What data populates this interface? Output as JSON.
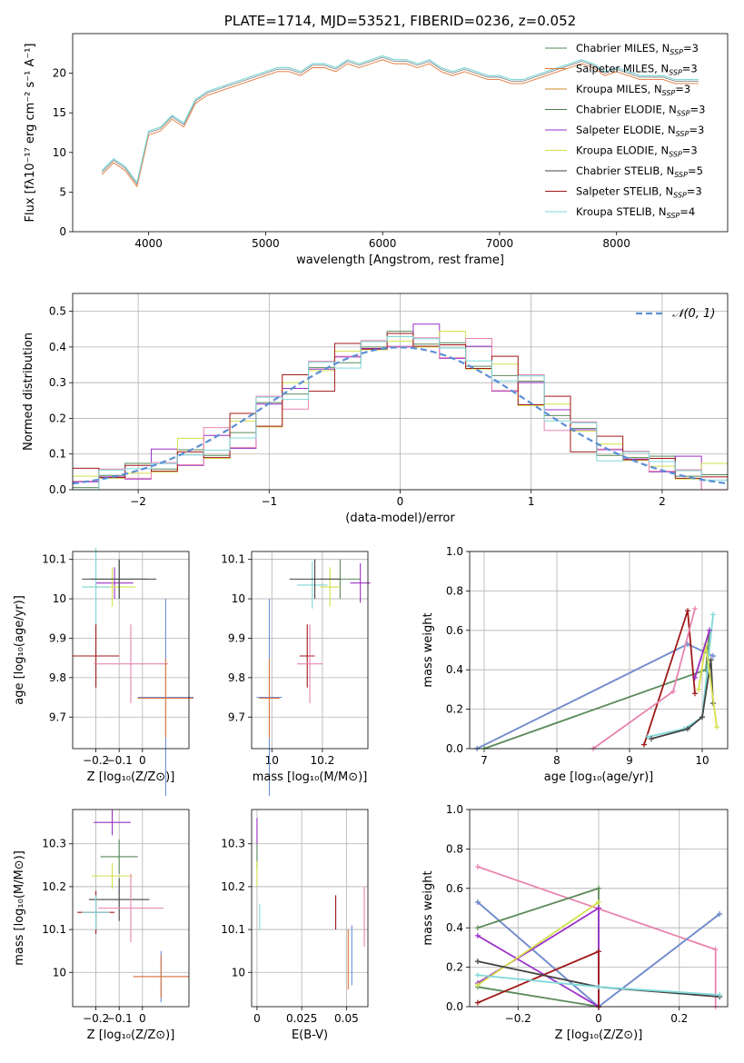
{
  "title": "PLATE=1714, MJD=53521, FIBERID=0236, z=0.052",
  "colors": {
    "Chabrier MILES": "#5a8a5a",
    "Salpeter MILES": "#e0783c",
    "Kroupa MILES": "#d08a2a",
    "Chabrier ELODIE": "#4a7a4a",
    "Salpeter ELODIE": "#9b30c8",
    "Kroupa ELODIE": "#d4e04a",
    "Chabrier STELIB": "#444444",
    "Salpeter STELIB": "#a01818",
    "Kroupa STELIB": "#7fd8d8",
    "data": "#808080",
    "normal": "#5b8fd6",
    "pink": "#e884b0",
    "blue": "#6a8fd8"
  },
  "chart_data": [
    {
      "id": "spectrum",
      "type": "line",
      "title": "PLATE=1714, MJD=53521, FIBERID=0236, z=0.052",
      "xlabel": "wavelength [Angstrom, rest frame]",
      "ylabel": "Flux [fλ10⁻¹⁷ erg cm⁻² s⁻¹ A⁻¹]",
      "xlim": [
        3350,
        8950
      ],
      "ylim": [
        0,
        25
      ],
      "xticks": [
        4000,
        5000,
        6000,
        7000,
        8000
      ],
      "yticks": [
        0,
        5,
        10,
        15,
        20
      ],
      "x": [
        3600,
        3700,
        3800,
        3900,
        4000,
        4100,
        4200,
        4300,
        4400,
        4500,
        4600,
        4700,
        4800,
        4900,
        5000,
        5100,
        5200,
        5300,
        5400,
        5500,
        5600,
        5700,
        5800,
        5900,
        6000,
        6100,
        6200,
        6300,
        6400,
        6500,
        6600,
        6700,
        6800,
        6900,
        7000,
        7100,
        7200,
        7300,
        7400,
        7500,
        7600,
        7700,
        7800,
        7900,
        8000,
        8100,
        8200,
        8300,
        8400,
        8500,
        8600,
        8700
      ],
      "y": [
        7.5,
        9.0,
        8.0,
        6.0,
        12.5,
        13.0,
        14.5,
        13.5,
        16.5,
        17.5,
        18.0,
        18.5,
        19.0,
        19.5,
        20.0,
        20.5,
        20.5,
        20.0,
        21.0,
        21.0,
        20.5,
        21.5,
        21.0,
        21.5,
        22.0,
        21.5,
        21.5,
        21.0,
        21.5,
        20.5,
        20.0,
        20.5,
        20.0,
        19.5,
        19.5,
        19.0,
        19.0,
        19.5,
        20.0,
        20.5,
        21.0,
        21.5,
        21.0,
        20.0,
        20.5,
        20.0,
        19.5,
        19.5,
        19.5,
        19.0,
        19.0,
        19.0
      ],
      "legend_position": "top-right",
      "legend": [
        {
          "label": "Chabrier MILES, N",
          "sub": "SSP",
          "suffix": "=3",
          "key": "Chabrier MILES"
        },
        {
          "label": "Salpeter MILES, N",
          "sub": "SSP",
          "suffix": "=3",
          "key": "Salpeter MILES"
        },
        {
          "label": "Kroupa MILES, N",
          "sub": "SSP",
          "suffix": "=3",
          "key": "Kroupa MILES"
        },
        {
          "label": "Chabrier ELODIE, N",
          "sub": "SSP",
          "suffix": "=3",
          "key": "Chabrier ELODIE"
        },
        {
          "label": "Salpeter ELODIE, N",
          "sub": "SSP",
          "suffix": "=3",
          "key": "Salpeter ELODIE"
        },
        {
          "label": "Kroupa ELODIE, N",
          "sub": "SSP",
          "suffix": "=3",
          "key": "Kroupa ELODIE"
        },
        {
          "label": "Chabrier STELIB, N",
          "sub": "SSP",
          "suffix": "=5",
          "key": "Chabrier STELIB"
        },
        {
          "label": "Salpeter STELIB, N",
          "sub": "SSP",
          "suffix": "=3",
          "key": "Salpeter STELIB"
        },
        {
          "label": "Kroupa STELIB, N",
          "sub": "SSP",
          "suffix": "=4",
          "key": "Kroupa STELIB"
        }
      ]
    },
    {
      "id": "residuals",
      "type": "line",
      "xlabel": "(data-model)/error",
      "ylabel": "Normed distribution",
      "xlim": [
        -2.5,
        2.5
      ],
      "ylim": [
        0,
        0.55
      ],
      "xticks": [
        -2,
        -1,
        0,
        1,
        2
      ],
      "yticks": [
        0.0,
        0.1,
        0.2,
        0.3,
        0.4,
        0.5
      ],
      "legend_label": "𝒩(0, 1)",
      "legend_position": "top-right",
      "bins": [
        -2.5,
        -2.3,
        -2.1,
        -1.9,
        -1.7,
        -1.5,
        -1.3,
        -1.1,
        -0.9,
        -0.7,
        -0.5,
        -0.3,
        -0.1,
        0.1,
        0.3,
        0.5,
        0.7,
        0.9,
        1.1,
        1.3,
        1.5,
        1.7,
        1.9,
        2.1,
        2.3,
        2.5
      ],
      "hist": [
        0.03,
        0.04,
        0.05,
        0.07,
        0.1,
        0.12,
        0.16,
        0.22,
        0.28,
        0.33,
        0.38,
        0.4,
        0.42,
        0.42,
        0.4,
        0.37,
        0.32,
        0.28,
        0.22,
        0.16,
        0.12,
        0.09,
        0.07,
        0.05,
        0.03
      ]
    },
    {
      "id": "age-vs-Z",
      "type": "scatter",
      "xlabel": "Z [log₁₀(Z/Z⊙)]",
      "ylabel": "age  [log₁₀(age/yr)]",
      "xlim": [
        -0.3,
        0.2
      ],
      "ylim": [
        9.62,
        10.12
      ],
      "xticks": [
        -0.2,
        -0.1,
        0.0
      ],
      "yticks": [
        9.7,
        9.8,
        9.9,
        10.0,
        10.1
      ],
      "points": [
        {
          "x": -0.1,
          "y": 10.05,
          "xerr": 0.12,
          "yerr": 0.05,
          "c": "Chabrier MILES"
        },
        {
          "x": -0.12,
          "y": 10.04,
          "xerr": 0.08,
          "yerr": 0.04,
          "c": "Salpeter ELODIE"
        },
        {
          "x": -0.13,
          "y": 10.03,
          "xerr": 0.1,
          "yerr": 0.05,
          "c": "Kroupa ELODIE"
        },
        {
          "x": -0.2,
          "y": 10.03,
          "xerr": 0.06,
          "yerr": 0.1,
          "c": "Kroupa STELIB"
        },
        {
          "x": -0.1,
          "y": 10.05,
          "xerr": 0.16,
          "yerr": 0.05,
          "c": "Chabrier STELIB"
        },
        {
          "x": -0.2,
          "y": 9.855,
          "xerr": 0.1,
          "yerr": 0.08,
          "c": "Salpeter STELIB"
        },
        {
          "x": -0.05,
          "y": 9.835,
          "xerr": 0.16,
          "yerr": 0.1,
          "c": "pink"
        },
        {
          "x": 0.1,
          "y": 9.75,
          "xerr": 0.12,
          "yerr": 0.25,
          "c": "blue"
        },
        {
          "x": 0.1,
          "y": 9.748,
          "xerr": 0.12,
          "yerr": 0.1,
          "c": "Salpeter MILES"
        }
      ]
    },
    {
      "id": "age-vs-mass",
      "type": "scatter",
      "xlabel": "mass [log₁₀(M/M⊙)]",
      "ylabel": "",
      "xlim": [
        9.92,
        10.38
      ],
      "ylim": [
        9.62,
        10.12
      ],
      "xticks": [
        10.0,
        10.2
      ],
      "yticks": [
        9.7,
        9.8,
        9.9,
        10.0,
        10.1
      ],
      "points": [
        {
          "x": 10.27,
          "y": 10.05,
          "xerr": 0.08,
          "yerr": 0.05,
          "c": "Chabrier MILES"
        },
        {
          "x": 10.35,
          "y": 10.04,
          "xerr": 0.04,
          "yerr": 0.05,
          "c": "Salpeter ELODIE"
        },
        {
          "x": 10.23,
          "y": 10.03,
          "xerr": 0.04,
          "yerr": 0.05,
          "c": "Kroupa ELODIE"
        },
        {
          "x": 10.16,
          "y": 10.035,
          "xerr": 0.06,
          "yerr": 0.06,
          "c": "Kroupa STELIB"
        },
        {
          "x": 10.17,
          "y": 10.05,
          "xerr": 0.1,
          "yerr": 0.05,
          "c": "Chabrier STELIB"
        },
        {
          "x": 10.14,
          "y": 9.855,
          "xerr": 0.03,
          "yerr": 0.08,
          "c": "Salpeter STELIB"
        },
        {
          "x": 10.15,
          "y": 9.835,
          "xerr": 0.05,
          "yerr": 0.1,
          "c": "pink"
        },
        {
          "x": 9.99,
          "y": 9.75,
          "xerr": 0.05,
          "yerr": 0.25,
          "c": "blue"
        },
        {
          "x": 9.99,
          "y": 9.748,
          "xerr": 0.04,
          "yerr": 0.1,
          "c": "Salpeter MILES"
        }
      ]
    },
    {
      "id": "massweight-vs-age",
      "type": "line",
      "xlabel": "age  [log₁₀(age/yr)]",
      "ylabel": "mass weight",
      "xlim": [
        6.8,
        10.35
      ],
      "ylim": [
        0,
        1
      ],
      "xticks": [
        7,
        8,
        9,
        10
      ],
      "yticks": [
        0.0,
        0.2,
        0.4,
        0.6,
        0.8,
        1.0
      ],
      "series": [
        {
          "c": "Salpeter MILES",
          "x": [
            6.9,
            9.8,
            10.15
          ],
          "y": [
            0.0,
            0.53,
            0.47
          ]
        },
        {
          "c": "blue",
          "x": [
            6.9,
            9.8,
            10.15
          ],
          "y": [
            0.0,
            0.53,
            0.47
          ]
        },
        {
          "c": "Chabrier MILES",
          "x": [
            7.0,
            10.05,
            10.1
          ],
          "y": [
            0.0,
            0.4,
            0.6
          ]
        },
        {
          "c": "Salpeter STELIB",
          "x": [
            9.2,
            9.8,
            9.9
          ],
          "y": [
            0.02,
            0.7,
            0.28
          ]
        },
        {
          "c": "pink",
          "x": [
            8.5,
            9.6,
            9.9
          ],
          "y": [
            0.0,
            0.29,
            0.71
          ]
        },
        {
          "c": "Kroupa STELIB",
          "x": [
            9.25,
            9.75,
            10.0,
            10.15
          ],
          "y": [
            0.06,
            0.1,
            0.16,
            0.68
          ]
        },
        {
          "c": "Chabrier STELIB",
          "x": [
            9.3,
            9.8,
            10.0,
            10.12,
            10.15
          ],
          "y": [
            0.05,
            0.1,
            0.16,
            0.45,
            0.23
          ]
        },
        {
          "c": "Kroupa ELODIE",
          "x": [
            9.95,
            10.05,
            10.2
          ],
          "y": [
            0.3,
            0.53,
            0.11
          ]
        },
        {
          "c": "Salpeter ELODIE",
          "x": [
            9.9,
            10.1
          ],
          "y": [
            0.36,
            0.6
          ]
        }
      ]
    },
    {
      "id": "mass-vs-Z",
      "type": "scatter",
      "xlabel": "Z [log₁₀(Z/Z⊙)]",
      "ylabel": "mass [log₁₀(M/M⊙)]",
      "xlim": [
        -0.3,
        0.2
      ],
      "ylim": [
        9.92,
        10.38
      ],
      "xticks": [
        -0.2,
        -0.1,
        0.0
      ],
      "yticks": [
        10.0,
        10.1,
        10.2,
        10.3
      ],
      "points": [
        {
          "x": -0.13,
          "y": 10.35,
          "xerr": 0.08,
          "yerr": 0.03,
          "c": "Salpeter ELODIE"
        },
        {
          "x": -0.1,
          "y": 10.27,
          "xerr": 0.08,
          "yerr": 0.04,
          "c": "Chabrier MILES"
        },
        {
          "x": -0.13,
          "y": 10.225,
          "xerr": 0.09,
          "yerr": 0.03,
          "c": "Kroupa ELODIE"
        },
        {
          "x": -0.1,
          "y": 10.17,
          "xerr": 0.13,
          "yerr": 0.05,
          "c": "Chabrier STELIB"
        },
        {
          "x": -0.2,
          "y": 10.14,
          "xerr": 0.08,
          "yerr": 0.05,
          "c": "Salpeter STELIB"
        },
        {
          "x": -0.2,
          "y": 10.14,
          "xerr": 0.06,
          "yerr": 0.04,
          "c": "Kroupa STELIB"
        },
        {
          "x": -0.05,
          "y": 10.15,
          "xerr": 0.14,
          "yerr": 0.08,
          "c": "pink"
        },
        {
          "x": 0.08,
          "y": 9.99,
          "xerr": 0.12,
          "yerr": 0.06,
          "c": "blue"
        },
        {
          "x": 0.08,
          "y": 9.99,
          "xerr": 0.12,
          "yerr": 0.05,
          "c": "Salpeter MILES"
        }
      ]
    },
    {
      "id": "mass-vs-ebv",
      "type": "scatter",
      "xlabel": "E(B-V)",
      "ylabel": "",
      "xlim": [
        -0.003,
        0.062
      ],
      "ylim": [
        9.92,
        10.38
      ],
      "xticks": [
        0.0,
        0.025,
        0.05
      ],
      "yticks": [
        10.0,
        10.1,
        10.2,
        10.3
      ],
      "points": [
        {
          "x": 0.0,
          "y": 10.33,
          "xerr": 0,
          "yerr": 0.03,
          "c": "Salpeter ELODIE"
        },
        {
          "x": 0.0,
          "y": 10.27,
          "xerr": 0,
          "yerr": 0.03,
          "c": "Chabrier MILES"
        },
        {
          "x": 0.0,
          "y": 10.23,
          "xerr": 0,
          "yerr": 0.03,
          "c": "Kroupa ELODIE"
        },
        {
          "x": 0.0015,
          "y": 10.13,
          "xerr": 0,
          "yerr": 0.03,
          "c": "Kroupa STELIB"
        },
        {
          "x": 0.044,
          "y": 10.14,
          "xerr": 0,
          "yerr": 0.04,
          "c": "Salpeter STELIB"
        },
        {
          "x": 0.06,
          "y": 10.13,
          "xerr": 0,
          "yerr": 0.07,
          "c": "pink"
        },
        {
          "x": 0.053,
          "y": 10.04,
          "xerr": 0,
          "yerr": 0.07,
          "c": "blue"
        },
        {
          "x": 0.051,
          "y": 10.03,
          "xerr": 0,
          "yerr": 0.07,
          "c": "Salpeter MILES"
        }
      ]
    },
    {
      "id": "massweight-vs-Z",
      "type": "line",
      "xlabel": "Z [log₁₀(Z/Z⊙)]",
      "ylabel": "mass weight",
      "xlim": [
        -0.32,
        0.32
      ],
      "ylim": [
        0,
        1
      ],
      "xticks": [
        -0.2,
        0.0,
        0.2
      ],
      "yticks": [
        0.0,
        0.2,
        0.4,
        0.6,
        0.8,
        1.0
      ],
      "series": [
        {
          "c": "pink",
          "x": [
            -0.3,
            0.29,
            0.29
          ],
          "y": [
            0.71,
            0.29,
            0.0
          ]
        },
        {
          "c": "Salpeter MILES",
          "x": [
            -0.3,
            0.0,
            0.3
          ],
          "y": [
            0.53,
            0.0,
            0.47
          ]
        },
        {
          "c": "blue",
          "x": [
            -0.3,
            0.0,
            0.3
          ],
          "y": [
            0.53,
            0.0,
            0.47
          ]
        },
        {
          "c": "Chabrier MILES",
          "x": [
            -0.3,
            0.0,
            0.0,
            -0.3
          ],
          "y": [
            0.4,
            0.6,
            0.0,
            0.1
          ]
        },
        {
          "c": "Salpeter ELODIE",
          "x": [
            -0.3,
            0.0,
            0.0,
            -0.3
          ],
          "y": [
            0.12,
            0.5,
            0.0,
            0.36
          ]
        },
        {
          "c": "Kroupa ELODIE",
          "x": [
            -0.3,
            0.0
          ],
          "y": [
            0.11,
            0.53
          ]
        },
        {
          "c": "Salpeter STELIB",
          "x": [
            -0.3,
            0.0,
            0.0
          ],
          "y": [
            0.02,
            0.28,
            0.0
          ]
        },
        {
          "c": "Chabrier STELIB",
          "x": [
            -0.3,
            0.0,
            0.3
          ],
          "y": [
            0.23,
            0.1,
            0.05
          ]
        },
        {
          "c": "Kroupa STELIB",
          "x": [
            -0.3,
            0.0,
            0.3
          ],
          "y": [
            0.16,
            0.1,
            0.06
          ]
        }
      ]
    }
  ]
}
